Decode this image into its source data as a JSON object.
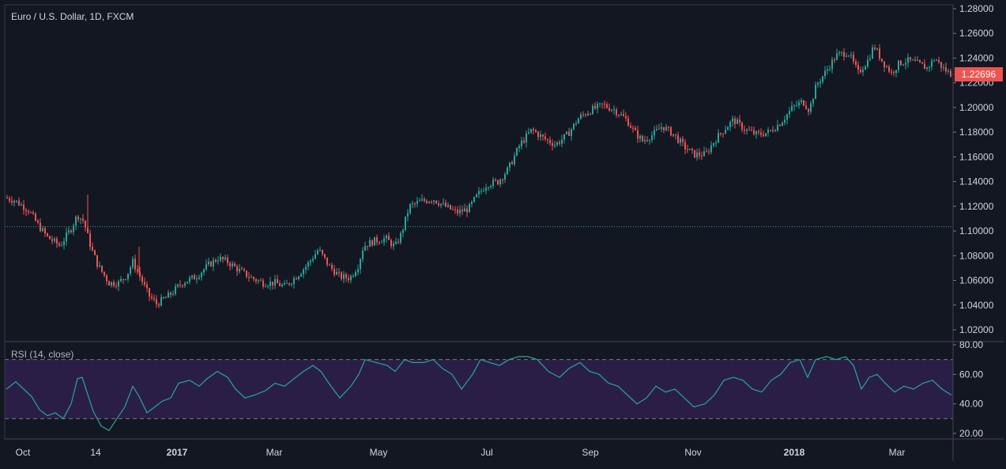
{
  "header": {
    "title": "Euro / U.S. Dollar, 1D, FXCM"
  },
  "price_badge": {
    "value": "1.22696"
  },
  "colors": {
    "background": "#131722",
    "up": "#26a69a",
    "down": "#ef5350",
    "axis_text": "#d1d4dc",
    "rsi_line": "#26a69a",
    "rsi_band": "#2a1e47",
    "reference_line": "#26a69a"
  },
  "chart_data": [
    {
      "type": "candlestick",
      "title": "Euro / U.S. Dollar, 1D, FXCM",
      "ylim": [
        1.01,
        1.28
      ],
      "y_ticks": [
        "1.28000",
        "1.26000",
        "1.24000",
        "1.22000",
        "1.20000",
        "1.18000",
        "1.16000",
        "1.14000",
        "1.12000",
        "1.10000",
        "1.08000",
        "1.06000",
        "1.04000",
        "1.02000"
      ],
      "x_ticks": [
        "Oct",
        "14",
        "2017",
        "Mar",
        "May",
        "Jul",
        "Sep",
        "Nov",
        "2018",
        "Mar"
      ],
      "reference_line": 1.1035,
      "last_price": 1.22696,
      "grid": false,
      "path_points": [
        [
          0,
          1.122
        ],
        [
          8,
          1.127
        ],
        [
          20,
          1.125
        ],
        [
          38,
          1.117
        ],
        [
          50,
          1.105
        ],
        [
          62,
          1.095
        ],
        [
          78,
          1.088
        ],
        [
          92,
          1.102
        ],
        [
          100,
          1.113
        ],
        [
          108,
          1.108
        ],
        [
          112,
          1.098
        ],
        [
          118,
          1.085
        ],
        [
          126,
          1.072
        ],
        [
          140,
          1.058
        ],
        [
          152,
          1.058
        ],
        [
          162,
          1.064
        ],
        [
          170,
          1.075
        ],
        [
          180,
          1.062
        ],
        [
          190,
          1.048
        ],
        [
          200,
          1.041
        ],
        [
          210,
          1.045
        ],
        [
          220,
          1.05
        ],
        [
          232,
          1.058
        ],
        [
          250,
          1.063
        ],
        [
          265,
          1.072
        ],
        [
          278,
          1.078
        ],
        [
          290,
          1.075
        ],
        [
          305,
          1.068
        ],
        [
          320,
          1.062
        ],
        [
          335,
          1.058
        ],
        [
          350,
          1.058
        ],
        [
          362,
          1.055
        ],
        [
          375,
          1.062
        ],
        [
          390,
          1.072
        ],
        [
          405,
          1.085
        ],
        [
          418,
          1.072
        ],
        [
          432,
          1.063
        ],
        [
          445,
          1.062
        ],
        [
          455,
          1.072
        ],
        [
          462,
          1.088
        ],
        [
          476,
          1.092
        ],
        [
          490,
          1.094
        ],
        [
          502,
          1.087
        ],
        [
          510,
          1.098
        ],
        [
          520,
          1.12
        ],
        [
          535,
          1.124
        ],
        [
          550,
          1.126
        ],
        [
          565,
          1.12
        ],
        [
          580,
          1.115
        ],
        [
          595,
          1.118
        ],
        [
          605,
          1.128
        ],
        [
          618,
          1.138
        ],
        [
          632,
          1.14
        ],
        [
          645,
          1.15
        ],
        [
          660,
          1.17
        ],
        [
          675,
          1.182
        ],
        [
          690,
          1.175
        ],
        [
          705,
          1.17
        ],
        [
          720,
          1.178
        ],
        [
          735,
          1.192
        ],
        [
          750,
          1.198
        ],
        [
          765,
          1.202
        ],
        [
          780,
          1.198
        ],
        [
          795,
          1.19
        ],
        [
          805,
          1.18
        ],
        [
          815,
          1.173
        ],
        [
          828,
          1.178
        ],
        [
          840,
          1.185
        ],
        [
          855,
          1.178
        ],
        [
          868,
          1.168
        ],
        [
          880,
          1.162
        ],
        [
          895,
          1.162
        ],
        [
          905,
          1.172
        ],
        [
          915,
          1.18
        ],
        [
          930,
          1.19
        ],
        [
          945,
          1.182
        ],
        [
          960,
          1.178
        ],
        [
          975,
          1.18
        ],
        [
          990,
          1.188
        ],
        [
          1005,
          1.2
        ],
        [
          1018,
          1.205
        ],
        [
          1026,
          1.198
        ],
        [
          1035,
          1.218
        ],
        [
          1048,
          1.23
        ],
        [
          1060,
          1.242
        ],
        [
          1075,
          1.245
        ],
        [
          1088,
          1.228
        ],
        [
          1100,
          1.238
        ],
        [
          1108,
          1.25
        ],
        [
          1118,
          1.238
        ],
        [
          1130,
          1.228
        ],
        [
          1140,
          1.236
        ],
        [
          1152,
          1.238
        ],
        [
          1165,
          1.235
        ],
        [
          1175,
          1.232
        ],
        [
          1185,
          1.24
        ],
        [
          1195,
          1.232
        ],
        [
          1205,
          1.227
        ]
      ]
    },
    {
      "type": "line",
      "title": "RSI (14, close)",
      "ylim": [
        15,
        82
      ],
      "y_ticks": [
        "80.00",
        "60.00",
        "40.00",
        "20.00"
      ],
      "bands": [
        30,
        70
      ],
      "points": [
        [
          8,
          50
        ],
        [
          20,
          55
        ],
        [
          30,
          50
        ],
        [
          40,
          45
        ],
        [
          50,
          36
        ],
        [
          60,
          32
        ],
        [
          70,
          34
        ],
        [
          80,
          30
        ],
        [
          90,
          40
        ],
        [
          98,
          57
        ],
        [
          104,
          58
        ],
        [
          110,
          48
        ],
        [
          118,
          35
        ],
        [
          128,
          25
        ],
        [
          138,
          22
        ],
        [
          148,
          30
        ],
        [
          158,
          38
        ],
        [
          168,
          52
        ],
        [
          176,
          45
        ],
        [
          186,
          34
        ],
        [
          196,
          38
        ],
        [
          206,
          42
        ],
        [
          216,
          44
        ],
        [
          226,
          54
        ],
        [
          240,
          56
        ],
        [
          252,
          52
        ],
        [
          262,
          57
        ],
        [
          275,
          62
        ],
        [
          288,
          58
        ],
        [
          298,
          50
        ],
        [
          310,
          44
        ],
        [
          322,
          46
        ],
        [
          336,
          49
        ],
        [
          348,
          54
        ],
        [
          360,
          52
        ],
        [
          372,
          57
        ],
        [
          384,
          62
        ],
        [
          396,
          66
        ],
        [
          406,
          62
        ],
        [
          416,
          54
        ],
        [
          430,
          44
        ],
        [
          444,
          52
        ],
        [
          454,
          60
        ],
        [
          462,
          70
        ],
        [
          476,
          68
        ],
        [
          490,
          66
        ],
        [
          500,
          62
        ],
        [
          512,
          70
        ],
        [
          522,
          68
        ],
        [
          536,
          68
        ],
        [
          548,
          70
        ],
        [
          560,
          64
        ],
        [
          572,
          60
        ],
        [
          584,
          50
        ],
        [
          598,
          60
        ],
        [
          608,
          70
        ],
        [
          620,
          68
        ],
        [
          632,
          66
        ],
        [
          644,
          70
        ],
        [
          656,
          72
        ],
        [
          668,
          72
        ],
        [
          680,
          70
        ],
        [
          694,
          62
        ],
        [
          708,
          58
        ],
        [
          720,
          64
        ],
        [
          734,
          68
        ],
        [
          746,
          62
        ],
        [
          758,
          60
        ],
        [
          770,
          54
        ],
        [
          782,
          52
        ],
        [
          794,
          46
        ],
        [
          806,
          40
        ],
        [
          818,
          44
        ],
        [
          830,
          52
        ],
        [
          842,
          48
        ],
        [
          854,
          50
        ],
        [
          866,
          44
        ],
        [
          878,
          38
        ],
        [
          892,
          40
        ],
        [
          904,
          46
        ],
        [
          916,
          56
        ],
        [
          928,
          58
        ],
        [
          940,
          56
        ],
        [
          952,
          50
        ],
        [
          964,
          48
        ],
        [
          976,
          56
        ],
        [
          988,
          60
        ],
        [
          1000,
          68
        ],
        [
          1012,
          70
        ],
        [
          1022,
          58
        ],
        [
          1032,
          70
        ],
        [
          1046,
          72
        ],
        [
          1058,
          70
        ],
        [
          1070,
          72
        ],
        [
          1080,
          66
        ],
        [
          1090,
          50
        ],
        [
          1100,
          58
        ],
        [
          1110,
          60
        ],
        [
          1120,
          54
        ],
        [
          1132,
          48
        ],
        [
          1144,
          52
        ],
        [
          1156,
          50
        ],
        [
          1168,
          54
        ],
        [
          1180,
          56
        ],
        [
          1192,
          50
        ],
        [
          1204,
          46
        ]
      ]
    }
  ]
}
